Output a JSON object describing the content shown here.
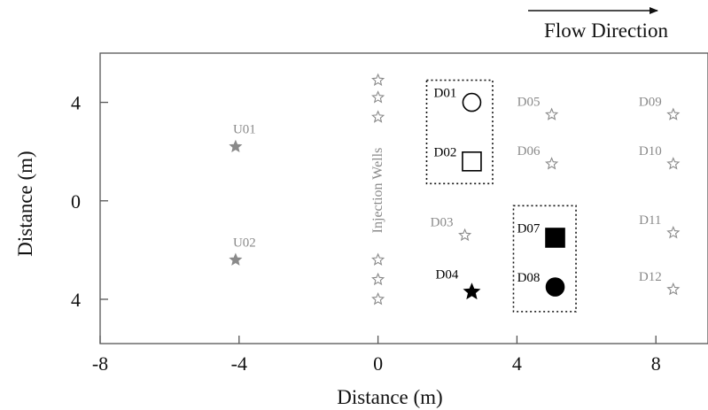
{
  "figure": {
    "flow_label": "Flow Direction",
    "xlabel": "Distance (m)",
    "ylabel": "Distance (m)",
    "injection_label": "Injection Wells",
    "colors": {
      "frame": "#555555",
      "gray": "#8a8a8a",
      "black": "#000000"
    }
  },
  "axes": {
    "xlim": [
      -8,
      9.5
    ],
    "ylim": [
      -5.8,
      6
    ],
    "x_ticks": [
      -8,
      -4,
      0,
      4,
      8
    ],
    "x_tick_labels": [
      "-8",
      "-4",
      "0",
      "4",
      "8"
    ],
    "y_ticks": [
      4,
      0,
      -4
    ],
    "y_tick_labels": [
      "4",
      "0",
      "4"
    ]
  },
  "injection_wells": [
    {
      "x": 0,
      "y": 4.9
    },
    {
      "x": 0,
      "y": 4.2
    },
    {
      "x": 0,
      "y": 3.4
    },
    {
      "x": 0,
      "y": -2.4
    },
    {
      "x": 0,
      "y": -3.2
    },
    {
      "x": 0,
      "y": -4.0
    }
  ],
  "wells": [
    {
      "id": "U01",
      "x": -4.1,
      "y": 2.2,
      "marker": "star",
      "fill": "filled",
      "color": "gray"
    },
    {
      "id": "U02",
      "x": -4.1,
      "y": -2.4,
      "marker": "star",
      "fill": "filled",
      "color": "gray"
    },
    {
      "id": "D01",
      "x": 2.7,
      "y": 4.0,
      "marker": "circle",
      "fill": "open",
      "color": "black"
    },
    {
      "id": "D02",
      "x": 2.7,
      "y": 1.6,
      "marker": "square",
      "fill": "open",
      "color": "black"
    },
    {
      "id": "D03",
      "x": 2.5,
      "y": -1.4,
      "marker": "star",
      "fill": "open",
      "color": "gray"
    },
    {
      "id": "D04",
      "x": 2.7,
      "y": -3.7,
      "marker": "star",
      "fill": "filled",
      "color": "black"
    },
    {
      "id": "D05",
      "x": 5.0,
      "y": 3.5,
      "marker": "star",
      "fill": "open",
      "color": "gray"
    },
    {
      "id": "D06",
      "x": 5.0,
      "y": 1.5,
      "marker": "star",
      "fill": "open",
      "color": "gray"
    },
    {
      "id": "D07",
      "x": 5.1,
      "y": -1.5,
      "marker": "square",
      "fill": "filled",
      "color": "black"
    },
    {
      "id": "D08",
      "x": 5.1,
      "y": -3.5,
      "marker": "circle",
      "fill": "filled",
      "color": "black"
    },
    {
      "id": "D09",
      "x": 8.5,
      "y": 3.5,
      "marker": "star",
      "fill": "open",
      "color": "gray"
    },
    {
      "id": "D10",
      "x": 8.5,
      "y": 1.5,
      "marker": "star",
      "fill": "open",
      "color": "gray"
    },
    {
      "id": "D11",
      "x": 8.5,
      "y": -1.3,
      "marker": "star",
      "fill": "open",
      "color": "gray"
    },
    {
      "id": "D12",
      "x": 8.5,
      "y": -3.6,
      "marker": "star",
      "fill": "open",
      "color": "gray"
    }
  ],
  "boxes": [
    {
      "name": "box-d01-d02",
      "x0": 1.4,
      "x1": 3.3,
      "y0": 0.7,
      "y1": 4.9
    },
    {
      "name": "box-d07-d08",
      "x0": 3.9,
      "x1": 5.7,
      "y0": -4.5,
      "y1": -0.2
    }
  ]
}
